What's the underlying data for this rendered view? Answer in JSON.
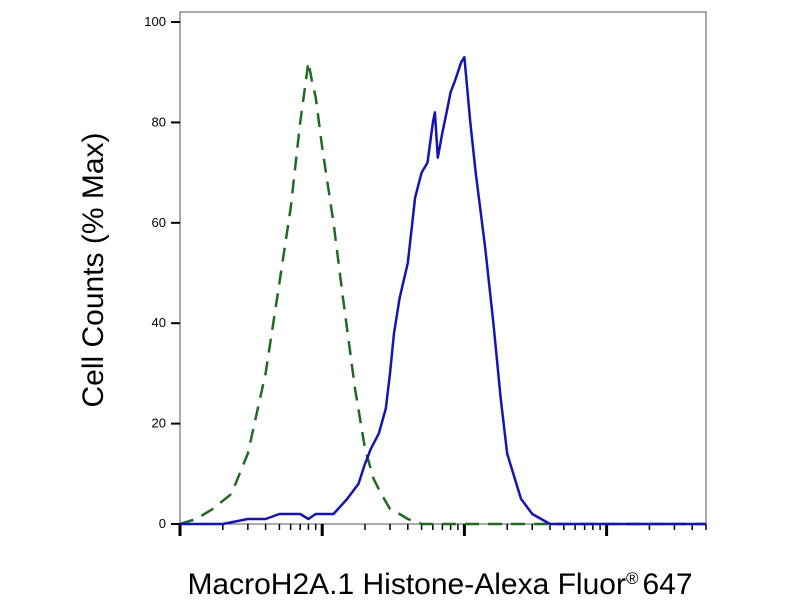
{
  "chart_data": {
    "type": "line",
    "title": "",
    "xlabel": "MacroH2A.1 Histone-Alexa Fluor",
    "xlabel_mark": "®",
    "xlabel_tail": "647",
    "ylabel": "Cell Counts (% Max)",
    "xscale": "log",
    "xlim": [
      1,
      5000
    ],
    "ylim": [
      0,
      102
    ],
    "yticks": [
      {
        "value": 0,
        "label": "0"
      },
      {
        "value": 20,
        "label": "20"
      },
      {
        "value": 40,
        "label": "40"
      },
      {
        "value": 60,
        "label": "60"
      },
      {
        "value": 80,
        "label": "80"
      },
      {
        "value": 100,
        "label": "100"
      }
    ],
    "grid": false,
    "legend": "none",
    "series": [
      {
        "style": "dashed",
        "color": "#1f6b1f",
        "x": [
          1,
          1.3,
          1.7,
          2.3,
          3,
          4,
          5,
          6,
          7,
          8,
          8.5,
          9,
          10,
          12,
          14,
          17,
          20,
          23,
          26,
          30,
          35,
          40,
          50,
          70,
          100,
          200,
          500,
          1000,
          2000,
          5000
        ],
        "y": [
          0,
          1,
          3,
          6,
          14,
          30,
          48,
          63,
          80,
          92,
          88,
          85,
          75,
          60,
          45,
          27,
          15,
          9,
          6,
          3,
          2,
          1,
          0,
          0,
          0,
          0,
          0,
          0,
          0,
          0
        ]
      },
      {
        "style": "solid",
        "color": "#1414b4",
        "x": [
          1,
          2,
          3,
          4,
          5,
          6,
          7,
          8,
          9,
          10,
          12,
          15,
          18,
          20,
          22,
          25,
          28,
          30,
          32,
          35,
          40,
          45,
          50,
          55,
          60,
          62,
          65,
          70,
          75,
          80,
          85,
          90,
          95,
          100,
          110,
          120,
          140,
          160,
          180,
          200,
          250,
          300,
          400,
          500,
          700,
          1000,
          2000,
          5000
        ],
        "y": [
          0,
          0,
          1,
          1,
          2,
          2,
          2,
          1,
          2,
          2,
          2,
          5,
          8,
          12,
          15,
          18,
          23,
          30,
          38,
          45,
          52,
          65,
          70,
          72,
          80,
          82,
          73,
          78,
          82,
          86,
          88,
          90,
          92,
          93,
          80,
          70,
          55,
          40,
          25,
          14,
          5,
          2,
          0,
          0,
          0,
          0,
          0,
          0
        ]
      }
    ]
  }
}
